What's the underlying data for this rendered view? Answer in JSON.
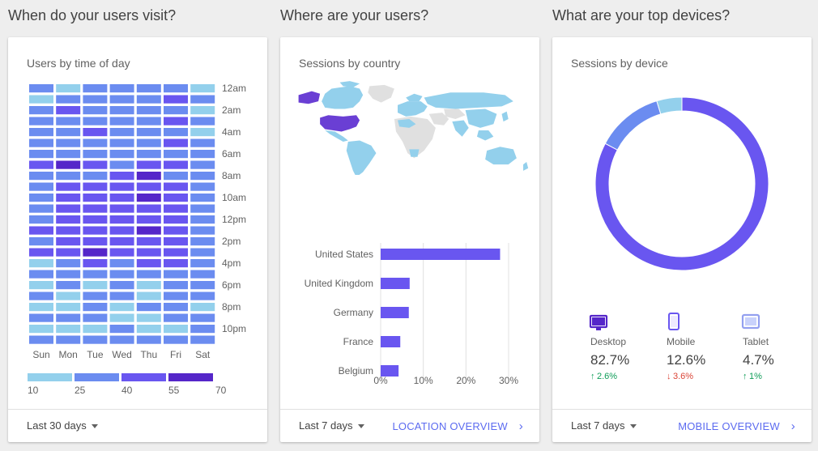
{
  "sections": [
    {
      "title": "When do your users visit?"
    },
    {
      "title": "Where are your users?"
    },
    {
      "title": "What are your top devices?"
    }
  ],
  "colors": {
    "heat": [
      "#93d0ec",
      "#6b8cf0",
      "#6956f0",
      "#5526c9"
    ],
    "bar": "#6956f0",
    "map_highlight": "#6a3fd4",
    "map_light": "#93d0ec",
    "map_nodata": "#e0e0e0",
    "donut_desktop": "#6956f0",
    "donut_mobile": "#6b8cf0",
    "donut_tablet": "#93d0ec",
    "up": "#0f9d58",
    "down": "#db4437",
    "link": "#5c6bf0"
  },
  "time_card": {
    "title": "Users by time of day",
    "days": [
      "Sun",
      "Mon",
      "Tue",
      "Wed",
      "Thu",
      "Fri",
      "Sat"
    ],
    "hour_labels": [
      "12am",
      "2am",
      "4am",
      "6am",
      "8am",
      "10am",
      "12pm",
      "2pm",
      "4pm",
      "6pm",
      "8pm",
      "10pm"
    ],
    "legend_values": [
      "10",
      "25",
      "40",
      "55",
      "70"
    ],
    "heat_levels": [
      [
        1,
        0,
        1,
        1,
        1,
        1,
        0
      ],
      [
        0,
        1,
        1,
        1,
        1,
        2,
        1
      ],
      [
        1,
        2,
        1,
        1,
        1,
        1,
        0
      ],
      [
        1,
        1,
        1,
        1,
        1,
        2,
        1
      ],
      [
        1,
        1,
        2,
        1,
        1,
        1,
        0
      ],
      [
        1,
        1,
        1,
        1,
        1,
        2,
        1
      ],
      [
        1,
        1,
        1,
        1,
        1,
        1,
        1
      ],
      [
        2,
        3,
        2,
        1,
        2,
        2,
        1
      ],
      [
        1,
        1,
        1,
        2,
        3,
        1,
        1
      ],
      [
        1,
        2,
        2,
        2,
        2,
        2,
        1
      ],
      [
        1,
        2,
        2,
        2,
        3,
        2,
        1
      ],
      [
        1,
        2,
        2,
        2,
        2,
        2,
        1
      ],
      [
        1,
        2,
        2,
        2,
        2,
        2,
        1
      ],
      [
        2,
        2,
        2,
        2,
        3,
        2,
        1
      ],
      [
        1,
        2,
        2,
        2,
        2,
        2,
        1
      ],
      [
        2,
        2,
        3,
        2,
        2,
        2,
        1
      ],
      [
        0,
        1,
        2,
        1,
        2,
        2,
        1
      ],
      [
        1,
        1,
        1,
        1,
        1,
        1,
        1
      ],
      [
        0,
        1,
        0,
        1,
        0,
        1,
        1
      ],
      [
        1,
        0,
        1,
        1,
        0,
        1,
        1
      ],
      [
        0,
        0,
        1,
        0,
        1,
        1,
        0
      ],
      [
        1,
        1,
        1,
        0,
        0,
        1,
        1
      ],
      [
        0,
        0,
        0,
        1,
        0,
        0,
        1
      ],
      [
        1,
        1,
        1,
        1,
        1,
        1,
        1
      ]
    ],
    "footer": {
      "range": "Last 30 days"
    }
  },
  "country_card": {
    "title": "Sessions by country",
    "footer": {
      "range": "Last 7 days",
      "link": "LOCATION OVERVIEW"
    }
  },
  "device_card": {
    "title": "Sessions by device",
    "devices": [
      {
        "name": "Desktop",
        "pct": "82.7%",
        "change": "2.6%",
        "dir": "up",
        "icon": "desktop-icon"
      },
      {
        "name": "Mobile",
        "pct": "12.6%",
        "change": "3.6%",
        "dir": "down",
        "icon": "mobile-icon"
      },
      {
        "name": "Tablet",
        "pct": "4.7%",
        "change": "1%",
        "dir": "up",
        "icon": "tablet-icon"
      }
    ],
    "footer": {
      "range": "Last 7 days",
      "link": "MOBILE OVERVIEW"
    }
  },
  "chart_data": [
    {
      "type": "bar",
      "orientation": "horizontal",
      "categories": [
        "United States",
        "United Kingdom",
        "Germany",
        "France",
        "Belgium"
      ],
      "values": [
        28,
        6.8,
        6.6,
        4.6,
        4.2
      ],
      "xlim": [
        0,
        30
      ],
      "x_ticks": [
        "0%",
        "10%",
        "20%",
        "30%"
      ]
    },
    {
      "type": "pie",
      "donut": true,
      "labels": [
        "Desktop",
        "Mobile",
        "Tablet"
      ],
      "values": [
        82.7,
        12.6,
        4.7
      ]
    }
  ]
}
